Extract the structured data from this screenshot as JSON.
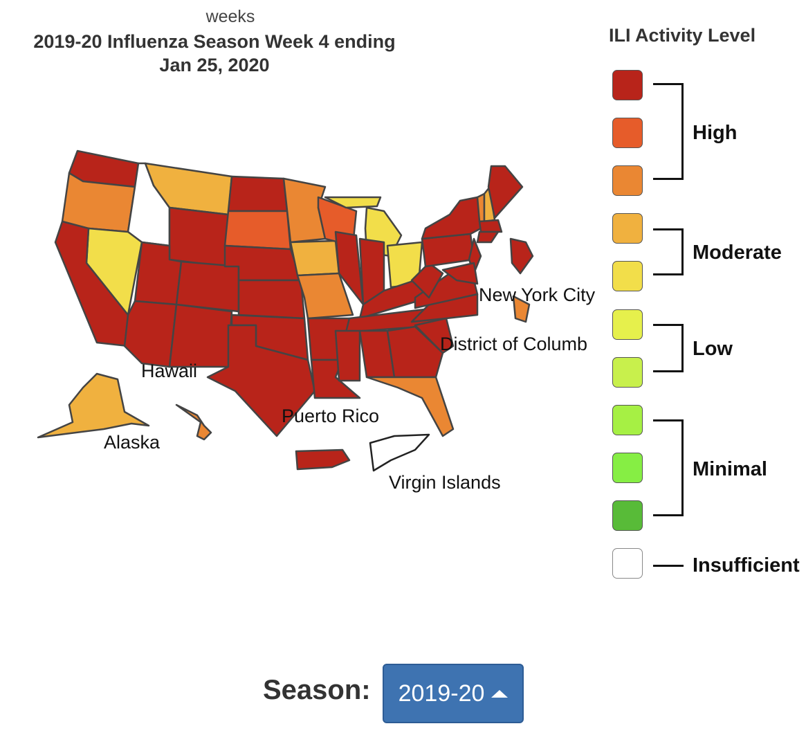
{
  "header": {
    "weeks": "weeks",
    "title_line1": "2019-20 Influenza Season Week 4 ending",
    "title_line2": "Jan 25, 2020"
  },
  "legend": {
    "title": "ILI Activity Level",
    "colors": {
      "10": "#b8241a",
      "9": "#e65c2a",
      "8": "#ea8733",
      "7": "#f0b13f",
      "6": "#f2de4a",
      "5": "#e6f04c",
      "4": "#c8f04c",
      "3": "#a6f044",
      "2": "#86ee44",
      "1": "#58bb38",
      "insufficient": "#ffffff"
    },
    "groups": [
      {
        "label": "High",
        "levels": [
          "10",
          "9",
          "8"
        ]
      },
      {
        "label": "Moderate",
        "levels": [
          "7",
          "6"
        ]
      },
      {
        "label": "Low",
        "levels": [
          "5",
          "4"
        ]
      },
      {
        "label": "Minimal",
        "levels": [
          "3",
          "2",
          "1"
        ]
      },
      {
        "label": "Insufficient",
        "levels": [
          "insufficient"
        ]
      }
    ]
  },
  "map": {
    "states": {
      "WA": "10",
      "OR": "8",
      "ID": "insufficient",
      "MT": "7",
      "WY": "10",
      "ND": "10",
      "SD": "9",
      "MN": "8",
      "WI": "9",
      "MI": "6",
      "MI_UP": "6",
      "IA": "7",
      "MO": "8",
      "OH": "6",
      "NV": "6",
      "CA": "10",
      "UT": "10",
      "CO": "10",
      "AZ": "10",
      "NM": "10",
      "TX": "10",
      "OK": "10",
      "KS": "10",
      "NE": "10",
      "IL": "10",
      "IN": "10",
      "KY": "10",
      "TN": "10",
      "AR": "10",
      "LA": "10",
      "MS": "10",
      "AL": "10",
      "GA": "10",
      "FL": "8",
      "SC": "10",
      "NC": "10",
      "VA": "10",
      "WV": "10",
      "PA": "10",
      "NY": "10",
      "VT": "8",
      "NH": "7",
      "ME": "10",
      "MA": "10",
      "CT": "10",
      "NJ": "10",
      "MD": "10",
      "AK": "7",
      "HI": "8",
      "PR": "10",
      "VI": "insufficient",
      "NYC": "8",
      "DC": "10"
    },
    "labels": {
      "nyc": "New York City",
      "dc": "District of Columb",
      "hawaii": "Hawaii",
      "puerto_rico": "Puerto Rico",
      "alaska": "Alaska",
      "virgin_islands": "Virgin Islands"
    }
  },
  "season": {
    "label": "Season:",
    "selected": "2019-20"
  }
}
